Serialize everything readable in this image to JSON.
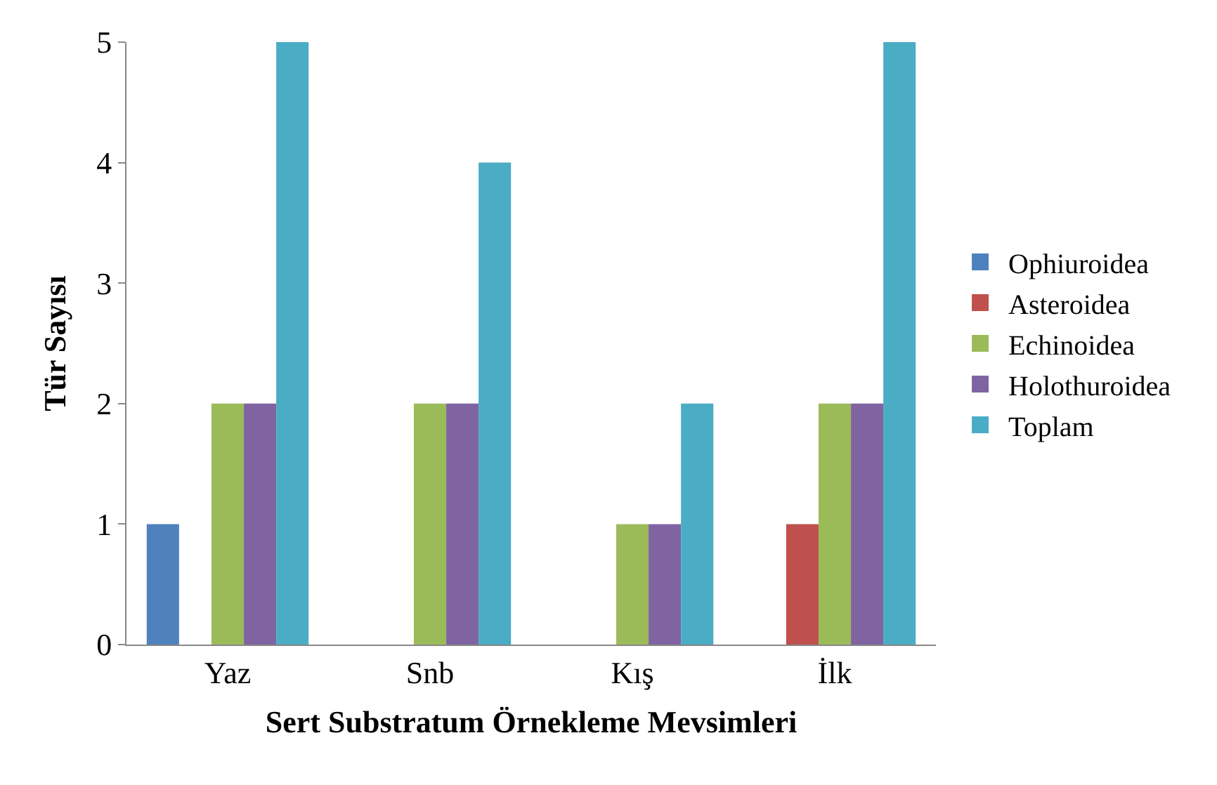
{
  "chart_data": {
    "type": "bar",
    "xlabel": "Sert Substratum Örnekleme Mevsimleri",
    "ylabel": "Tür Sayısı",
    "categories": [
      "Yaz",
      "Snb",
      "Kış",
      "İlk"
    ],
    "series": [
      {
        "name": "Ophiuroidea",
        "color": "#4f81bd",
        "values": [
          1,
          0,
          0,
          0
        ]
      },
      {
        "name": "Asteroidea",
        "color": "#c0504d",
        "values": [
          0,
          0,
          0,
          1
        ]
      },
      {
        "name": "Echinoidea",
        "color": "#9bbb59",
        "values": [
          2,
          2,
          1,
          2
        ]
      },
      {
        "name": "Holothuroidea",
        "color": "#8064a2",
        "values": [
          2,
          2,
          1,
          2
        ]
      },
      {
        "name": "Toplam",
        "color": "#4bacc6",
        "values": [
          5,
          4,
          2,
          5
        ]
      }
    ],
    "ylim": [
      0,
      5
    ],
    "yticks": [
      0,
      1,
      2,
      3,
      4,
      5
    ],
    "grid": false,
    "legend": "right"
  }
}
